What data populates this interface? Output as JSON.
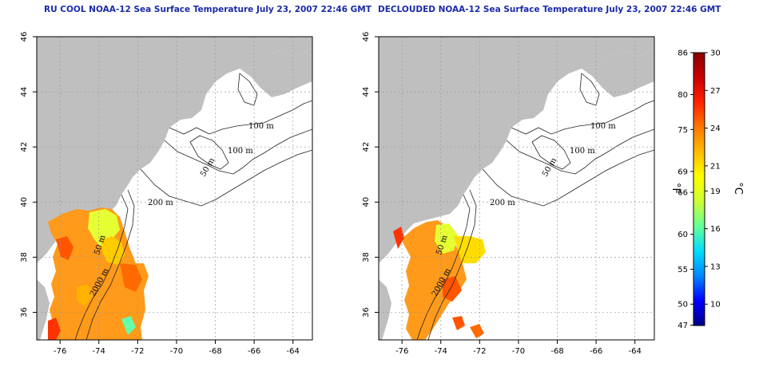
{
  "titles": {
    "left": "RU COOL NOAA-12 Sea Surface Temperature July 23, 2007 22:46 GMT",
    "right": "DECLOUDED NOAA-12 Sea Surface Temperature July 23, 2007 22:46 GMT"
  },
  "map": {
    "lon_range": [
      -77.2,
      -63
    ],
    "lat_range": [
      35,
      46
    ],
    "lon_ticks": [
      "-76",
      "-74",
      "-72",
      "-70",
      "-68",
      "-66",
      "-64"
    ],
    "lat_ticks": [
      "36",
      "38",
      "40",
      "42",
      "44",
      "46"
    ],
    "land_color": "#bfbfbf",
    "grid": true
  },
  "contour_labels": [
    "100 m",
    "100 m",
    "50 m",
    "200 m",
    "50 m",
    "2000 m"
  ],
  "colorbar": {
    "fahrenheit_ticks": [
      "86",
      "80",
      "75",
      "69",
      "66",
      "60",
      "55",
      "50",
      "47"
    ],
    "celsius_ticks": [
      "30",
      "27",
      "24",
      "21",
      "19",
      "16",
      "13",
      "10"
    ],
    "fahrenheit_unit": "°F",
    "celsius_unit": "°C",
    "range_c": [
      8.3,
      30
    ],
    "colors": [
      "#000088",
      "#0000ff",
      "#0088ff",
      "#00ddff",
      "#66ff99",
      "#ccff33",
      "#ffff00",
      "#ffbb00",
      "#ff7700",
      "#ff2200",
      "#cc0000",
      "#880000"
    ]
  }
}
